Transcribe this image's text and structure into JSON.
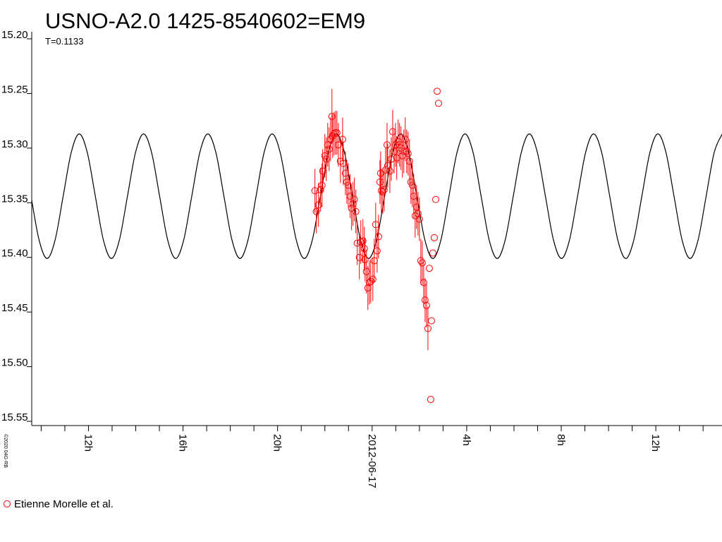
{
  "chart_data": {
    "type": "line",
    "title": "USNO-A2.0 1425-8540602=EM9",
    "subtitle": "T=0.1133",
    "credit": "©2020 04G-RB",
    "xlim": [
      -14.4,
      14.8
    ],
    "xticks": [
      {
        "value": -12,
        "label": "12h"
      },
      {
        "value": -8,
        "label": "16h"
      },
      {
        "value": -4,
        "label": "20h"
      },
      {
        "value": 0,
        "label": "2012-06-17"
      },
      {
        "value": 4,
        "label": "4h"
      },
      {
        "value": 8,
        "label": "8h"
      },
      {
        "value": 12,
        "label": "12h"
      }
    ],
    "xminorticks": [
      -14,
      -13,
      -11,
      -10,
      -9,
      -7,
      -6,
      -5,
      -3,
      -2,
      -1,
      1,
      2,
      3,
      5,
      6,
      7,
      9,
      10,
      11,
      13,
      14
    ],
    "ylim": [
      15.2,
      15.55
    ],
    "y_inverted": true,
    "yticks": [
      {
        "value": 15.2,
        "label": "15.20"
      },
      15.25,
      {
        "value": 15.3,
        "label": "15.30"
      },
      15.35,
      {
        "value": 15.4,
        "label": "15.40"
      },
      15.45,
      {
        "value": 15.5,
        "label": "15.50"
      },
      15.55
    ],
    "series": [
      {
        "kind": "line",
        "color": "#000000",
        "x": [
          -14.43,
          -14.09,
          -13.75,
          -13.41,
          -13.07,
          -12.73,
          -12.39,
          -12.05,
          -11.71,
          -11.37,
          -11.03,
          -10.69,
          -10.35,
          -10.01,
          -9.67,
          -9.33,
          -8.99,
          -8.65,
          -8.31,
          -7.97,
          -7.63,
          -7.29,
          -6.95,
          -6.61,
          -6.27,
          -5.93,
          -5.59,
          -5.25,
          -4.91,
          -4.57,
          -4.23,
          -3.89,
          -3.55,
          -3.21,
          -2.87,
          -2.53,
          -2.19,
          -1.85,
          -1.51,
          -1.17,
          -0.83,
          -0.49,
          -0.15,
          0.19,
          0.53,
          0.87,
          1.21,
          1.55,
          1.89,
          2.23,
          2.57,
          2.91,
          3.25,
          3.59,
          3.93,
          4.27,
          4.61,
          4.95,
          5.29,
          5.63,
          5.97,
          6.31,
          6.65,
          6.99,
          7.33,
          7.67,
          8.01,
          8.35,
          8.69,
          9.03,
          9.37,
          9.71,
          10.05,
          10.39,
          10.73,
          11.07,
          11.41,
          11.75,
          12.09,
          12.43,
          12.77,
          13.11,
          13.45,
          13.79,
          14.13,
          14.47,
          14.81
        ],
        "values": [
          15.344,
          15.384,
          15.401,
          15.384,
          15.344,
          15.304,
          15.287,
          15.304,
          15.344,
          15.384,
          15.401,
          15.384,
          15.344,
          15.304,
          15.287,
          15.304,
          15.344,
          15.384,
          15.401,
          15.384,
          15.344,
          15.304,
          15.287,
          15.304,
          15.344,
          15.384,
          15.401,
          15.384,
          15.344,
          15.304,
          15.287,
          15.304,
          15.344,
          15.384,
          15.401,
          15.384,
          15.344,
          15.304,
          15.287,
          15.304,
          15.344,
          15.384,
          15.401,
          15.384,
          15.344,
          15.304,
          15.287,
          15.304,
          15.344,
          15.384,
          15.401,
          15.384,
          15.344,
          15.304,
          15.287,
          15.304,
          15.344,
          15.384,
          15.401,
          15.384,
          15.344,
          15.304,
          15.287,
          15.304,
          15.344,
          15.384,
          15.401,
          15.384,
          15.344,
          15.304,
          15.287,
          15.304,
          15.344,
          15.384,
          15.401,
          15.384,
          15.344,
          15.304,
          15.287,
          15.304,
          15.344,
          15.384,
          15.401,
          15.384,
          15.344,
          15.304,
          15.287
        ]
      },
      {
        "kind": "scatter",
        "name": "Etienne Morelle et al.",
        "color": "#ff0000",
        "x": [
          -2.42,
          -2.36,
          -2.27,
          -2.18,
          -2.12,
          -2.09,
          -2.0,
          -1.94,
          -1.88,
          -1.82,
          -1.76,
          -1.7,
          -1.67,
          -1.61,
          -1.55,
          -1.49,
          -1.43,
          -1.34,
          -1.25,
          -1.22,
          -1.13,
          -1.07,
          -1.01,
          -0.93,
          -0.87,
          -0.81,
          -0.75,
          -0.69,
          -0.63,
          -0.54,
          -0.48,
          -0.39,
          -0.33,
          -0.3,
          -0.24,
          -0.18,
          -0.12,
          -0.06,
          0.03,
          0.09,
          0.15,
          0.21,
          0.27,
          0.33,
          0.36,
          0.39,
          0.45,
          0.51,
          0.57,
          0.63,
          0.66,
          0.75,
          0.81,
          0.87,
          0.93,
          0.99,
          1.04,
          1.1,
          1.16,
          1.22,
          1.28,
          1.34,
          1.4,
          1.46,
          1.52,
          1.58,
          1.64,
          1.7,
          1.76,
          1.82,
          1.88,
          1.94,
          2.0,
          2.06,
          2.12,
          2.18,
          2.24,
          2.3,
          2.36,
          2.42,
          2.51,
          2.57,
          2.63,
          2.69,
          2.75,
          2.81,
          2.48
        ],
        "values": [
          15.339,
          15.358,
          15.352,
          15.338,
          15.334,
          15.321,
          15.307,
          15.31,
          15.297,
          15.301,
          15.292,
          15.271,
          15.289,
          15.287,
          15.286,
          15.286,
          15.297,
          15.312,
          15.292,
          15.314,
          15.323,
          15.331,
          15.334,
          15.344,
          15.355,
          15.351,
          15.347,
          15.358,
          15.387,
          15.4,
          15.386,
          15.385,
          15.392,
          15.402,
          15.413,
          15.428,
          15.423,
          15.422,
          15.42,
          15.403,
          15.37,
          15.394,
          15.381,
          15.331,
          15.323,
          15.339,
          15.34,
          15.338,
          15.32,
          15.297,
          15.316,
          15.321,
          15.31,
          15.285,
          15.303,
          15.297,
          15.309,
          15.294,
          15.297,
          15.3,
          15.307,
          15.303,
          15.292,
          15.303,
          15.305,
          15.312,
          15.331,
          15.334,
          15.344,
          15.362,
          15.354,
          15.36,
          15.365,
          15.403,
          15.405,
          15.423,
          15.439,
          15.444,
          15.465,
          15.41,
          15.458,
          15.396,
          15.382,
          15.347,
          15.248,
          15.259,
          15.53
        ],
        "errors": [
          0.02,
          0.02,
          0.02,
          0.02,
          0.02,
          0.02,
          0.02,
          0.02,
          0.02,
          0.02,
          0.02,
          0.025,
          0.02,
          0.02,
          0.02,
          0.02,
          0.02,
          0.02,
          0.02,
          0.02,
          0.02,
          0.02,
          0.02,
          0.02,
          0.02,
          0.02,
          0.02,
          0.02,
          0.02,
          0.02,
          0.02,
          0.02,
          0.02,
          0.02,
          0.02,
          0.02,
          0.02,
          0.02,
          0.02,
          0.02,
          0.02,
          0.02,
          0.02,
          0.02,
          0.02,
          0.02,
          0.02,
          0.02,
          0.02,
          0.02,
          0.02,
          0.02,
          0.02,
          0.02,
          0.02,
          0.02,
          0.02,
          0.02,
          0.02,
          0.02,
          0.02,
          0.02,
          0.02,
          0.02,
          0.02,
          0.02,
          0.02,
          0.02,
          0.02,
          0.02,
          0.02,
          0.02,
          0.02,
          0.02,
          0.02,
          0.02,
          0.02,
          0.02,
          0.02,
          null,
          null,
          null,
          null,
          null,
          null,
          null,
          null
        ]
      }
    ]
  }
}
